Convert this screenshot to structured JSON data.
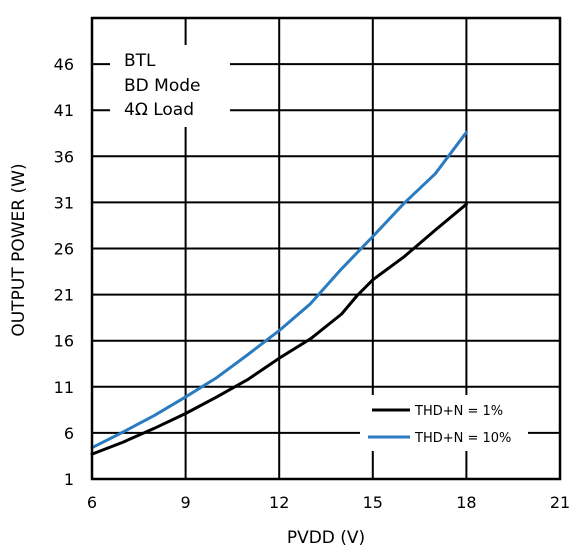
{
  "chart_data": {
    "type": "line",
    "xlabel": "PVDD (V)",
    "ylabel": "OUTPUT POWER (W)",
    "xlim": [
      6,
      21
    ],
    "ylim": [
      1,
      51
    ],
    "xticks": [
      6,
      9,
      12,
      15,
      18,
      21
    ],
    "yticks": [
      1,
      6,
      11,
      16,
      21,
      26,
      31,
      36,
      41,
      46
    ],
    "grid": true,
    "legend_position": "bottom-right",
    "annotation": [
      "BTL",
      "BD Mode",
      "4Ω Load"
    ],
    "series": [
      {
        "name": "THD+N = 1%",
        "color": "#000000",
        "x": [
          6,
          7,
          8,
          9,
          10,
          11,
          12,
          13,
          14,
          14.5,
          15,
          16,
          17,
          18
        ],
        "y": [
          3.7,
          5.0,
          6.5,
          8.1,
          9.9,
          11.8,
          14.1,
          16.2,
          18.9,
          20.9,
          22.6,
          25.1,
          28.0,
          30.8
        ]
      },
      {
        "name": "THD+N = 10%",
        "color": "#2a7bbf",
        "x": [
          6,
          7,
          8,
          9,
          10,
          11,
          12,
          13,
          14,
          15,
          16,
          17,
          18
        ],
        "y": [
          4.4,
          6.1,
          7.9,
          9.9,
          12.0,
          14.5,
          17.1,
          20.0,
          23.8,
          27.3,
          30.9,
          34.1,
          38.6
        ]
      }
    ]
  }
}
